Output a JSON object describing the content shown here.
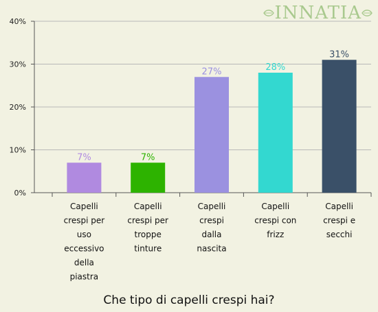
{
  "brand": {
    "logo_text": "INNATIA"
  },
  "chart_data": {
    "type": "bar",
    "title": "Che tipo di capelli crespi hai?",
    "categories": [
      "Capelli crespi per uso eccessivo della piastra",
      "Capelli crespi per troppe tinture",
      "Capelli crespi dalla nascita",
      "Capelli crespi con frizz",
      "Capelli crespi e secchi"
    ],
    "category_lines": [
      [
        "Capelli",
        "crespi per",
        "uso",
        "eccessivo",
        "della",
        "piastra"
      ],
      [
        "Capelli",
        "crespi per",
        "troppe",
        "tinture"
      ],
      [
        "Capelli",
        "crespi",
        "dalla",
        "nascita"
      ],
      [
        "Capelli",
        "crespi con",
        "frizz"
      ],
      [
        "Capelli",
        "crespi e",
        "secchi"
      ]
    ],
    "values": [
      7,
      7,
      27,
      28,
      31
    ],
    "value_labels": [
      "7%",
      "7%",
      "27%",
      "28%",
      "31%"
    ],
    "colors": [
      "#b08ae0",
      "#2db300",
      "#9b91e0",
      "#33d8d0",
      "#3a5068"
    ],
    "y_ticks": [
      0,
      10,
      20,
      30,
      40
    ],
    "y_tick_labels": [
      "0%",
      "10%",
      "20%",
      "30%",
      "40%"
    ],
    "ylim": [
      0,
      40
    ],
    "grid": true
  }
}
